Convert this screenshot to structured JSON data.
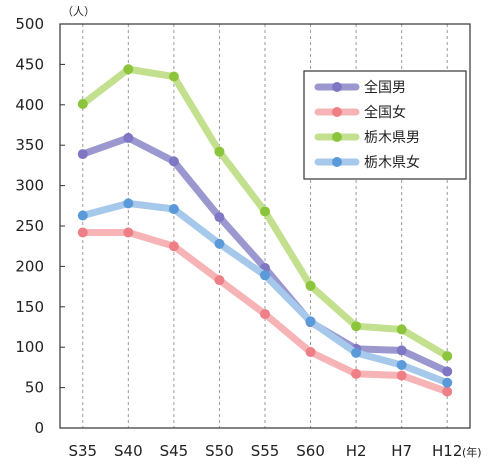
{
  "chart_data": {
    "type": "line",
    "title": "",
    "xlabel": "",
    "ylabel": "",
    "y_unit": "（人）",
    "x_unit": "(年)",
    "categories": [
      "S35",
      "S40",
      "S45",
      "S50",
      "S55",
      "S60",
      "H2",
      "H7",
      "H12"
    ],
    "ylim": [
      0,
      500
    ],
    "yticks": [
      0,
      50,
      100,
      150,
      200,
      250,
      300,
      350,
      400,
      450,
      500
    ],
    "grid": "vertical-dashed",
    "legend_position": "top-right",
    "series": [
      {
        "name": "全国男",
        "color": "#9b97cf",
        "marker": "#7f77c3",
        "values": [
          339,
          359,
          330,
          261,
          198,
          131,
          98,
          96,
          70
        ]
      },
      {
        "name": "全国女",
        "color": "#f7b4b6",
        "marker": "#ef7f86",
        "values": [
          242,
          242,
          225,
          183,
          141,
          94,
          67,
          65,
          45
        ]
      },
      {
        "name": "栃木県男",
        "color": "#c3e08e",
        "marker": "#8cc43c",
        "values": [
          401,
          444,
          435,
          342,
          268,
          176,
          126,
          122,
          89
        ]
      },
      {
        "name": "栃木県女",
        "color": "#a6c8ea",
        "marker": "#5a9ad8",
        "values": [
          263,
          278,
          271,
          228,
          189,
          132,
          93,
          78,
          56
        ]
      }
    ]
  }
}
